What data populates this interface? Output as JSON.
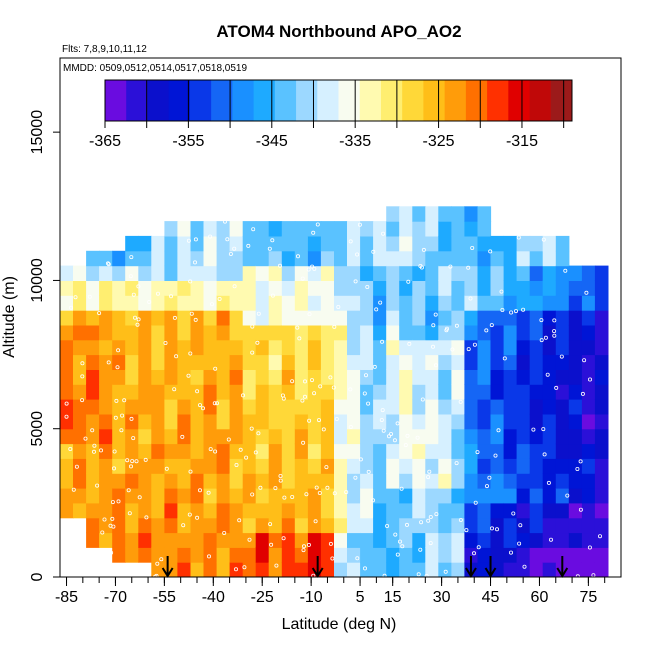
{
  "chart_data": {
    "type": "heatmap",
    "title": "ATOM4 Northbound APO_AO2",
    "flights_note": "Flts: 7,8,9,10,11,12",
    "dates_note": "MMDD: 0509,0512,0514,0517,0518,0519",
    "xlabel": "Latitude (deg N)",
    "ylabel": "Altitude (m)",
    "xlim": [
      -87,
      85
    ],
    "ylim": [
      0,
      17500
    ],
    "x_ticks": [
      -85,
      -70,
      -55,
      -40,
      -25,
      -10,
      5,
      15,
      30,
      45,
      60,
      75
    ],
    "x_tick_labels": [
      "-85",
      "-70",
      "-55",
      "-40",
      "-25",
      "-10",
      "5",
      "15",
      "30",
      "45",
      "60",
      "75"
    ],
    "x_minor_step": 5,
    "y_ticks": [
      0,
      5000,
      10000,
      15000
    ],
    "y_tick_labels": [
      "0",
      "5000",
      "10000",
      "15000"
    ],
    "colorbar": {
      "min": -365,
      "max": -309,
      "step": 5,
      "tick_values": [
        -365,
        -355,
        -345,
        -335,
        -325,
        -315
      ],
      "tick_labels": [
        "-365",
        "-355",
        "-345",
        "-335",
        "-325",
        "-315"
      ],
      "colors": [
        "#6a0ce0",
        "#2b10d8",
        "#0b10cc",
        "#0015d6",
        "#0a38e8",
        "#1566f5",
        "#1a90ff",
        "#1eaaff",
        "#5ac2ff",
        "#9cd8ff",
        "#d6f0ff",
        "#f8fcf0",
        "#fffab0",
        "#ffee70",
        "#ffd838",
        "#ffbe18",
        "#ff9c0a",
        "#ff7000",
        "#ff3000",
        "#e00000",
        "#c00808",
        "#9c1a1a"
      ]
    },
    "profile_bottom_latitudes": [
      -54,
      -8,
      39,
      45,
      67
    ],
    "field_grid": {
      "lat_start": -87,
      "lat_step": 4,
      "alt_start": 0,
      "alt_step": 500,
      "lat_count": 43,
      "alt_count": 27
    }
  }
}
